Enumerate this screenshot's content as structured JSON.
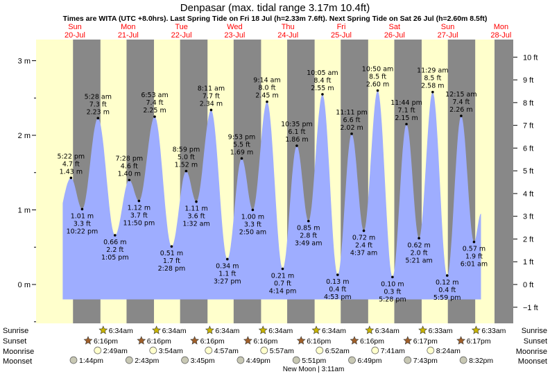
{
  "title": "Denpasar (max. tidal range 3.17m 10.4ft)",
  "subtitle": "Times are WITA (UTC +8.0hrs). Last Spring Tide on Fri 18 Jul (h=2.33m 7.6ft). Next Spring Tide on Sat 26 Jul (h=2.60m 8.5ft)",
  "days": [
    {
      "name": "Sun",
      "date": "20-Jul"
    },
    {
      "name": "Mon",
      "date": "21-Jul"
    },
    {
      "name": "Tue",
      "date": "22-Jul"
    },
    {
      "name": "Wed",
      "date": "23-Jul"
    },
    {
      "name": "Thu",
      "date": "24-Jul"
    },
    {
      "name": "Fri",
      "date": "25-Jul"
    },
    {
      "name": "Sat",
      "date": "26-Jul"
    },
    {
      "name": "Sun",
      "date": "27-Jul"
    },
    {
      "name": "Mon",
      "date": "28-Jul"
    }
  ],
  "chart_data": {
    "type": "area",
    "title": "Denpasar (max. tidal range 3.17m 10.4ft)",
    "y_unit_left": "m",
    "y_unit_right": "ft",
    "ylim_m": [
      -0.57,
      3.06
    ],
    "left_ticks": [
      {
        "v": 0,
        "label": "0 m"
      },
      {
        "v": 1,
        "label": "1 m"
      },
      {
        "v": 2,
        "label": "2 m"
      },
      {
        "v": 3,
        "label": "3 m"
      }
    ],
    "right_ticks": [
      {
        "v": -1,
        "label": "−1 ft"
      },
      {
        "v": 0,
        "label": "0 ft"
      },
      {
        "v": 1,
        "label": "1 ft"
      },
      {
        "v": 2,
        "label": "2 ft"
      },
      {
        "v": 3,
        "label": "3 ft"
      },
      {
        "v": 4,
        "label": "4 ft"
      },
      {
        "v": 5,
        "label": "5 ft"
      },
      {
        "v": 6,
        "label": "6 ft"
      },
      {
        "v": 7,
        "label": "7 ft"
      },
      {
        "v": 8,
        "label": "8 ft"
      },
      {
        "v": 9,
        "label": "9 ft"
      },
      {
        "v": 10,
        "label": "10 ft"
      }
    ],
    "night_shading": [
      {
        "start_day": 0,
        "end_day": 0,
        "sunset": "18:16",
        "sunrise": "06:34"
      },
      {
        "start_day": 1,
        "end_day": 1,
        "sunset": "18:16",
        "sunrise": "06:34"
      },
      {
        "start_day": 2,
        "end_day": 2,
        "sunset": "18:16",
        "sunrise": "06:34"
      },
      {
        "start_day": 3,
        "end_day": 3,
        "sunset": "18:16",
        "sunrise": "06:34"
      },
      {
        "start_day": 4,
        "end_day": 4,
        "sunset": "18:16",
        "sunrise": "06:34"
      },
      {
        "start_day": 5,
        "end_day": 5,
        "sunset": "18:16",
        "sunrise": "06:34"
      },
      {
        "start_day": 6,
        "end_day": 6,
        "sunset": "18:17",
        "sunrise": "06:33"
      },
      {
        "start_day": 7,
        "end_day": 7,
        "sunset": "18:17",
        "sunrise": "06:33"
      }
    ],
    "tides": [
      {
        "day": 0,
        "time": "17:22",
        "time_label": "5:22 pm",
        "m": 1.43,
        "ft": "4.7 ft",
        "m_label": "1.43 m",
        "type": "high"
      },
      {
        "day": 0,
        "time": "22:22",
        "time_label": "10:22 pm",
        "m": 1.01,
        "ft": "3.3 ft",
        "m_label": "1.01 m",
        "type": "low"
      },
      {
        "day": 1,
        "time": "05:28",
        "time_label": "5:28 am",
        "m": 2.23,
        "ft": "7.3 ft",
        "m_label": "2.23 m",
        "type": "high"
      },
      {
        "day": 1,
        "time": "13:05",
        "time_label": "1:05 pm",
        "m": 0.66,
        "ft": "2.2 ft",
        "m_label": "0.66 m",
        "type": "low"
      },
      {
        "day": 1,
        "time": "19:28",
        "time_label": "7:28 pm",
        "m": 1.4,
        "ft": "4.6 ft",
        "m_label": "1.40 m",
        "type": "high"
      },
      {
        "day": 1,
        "time": "23:50",
        "time_label": "11:50 pm",
        "m": 1.12,
        "ft": "3.7 ft",
        "m_label": "1.12 m",
        "type": "low"
      },
      {
        "day": 2,
        "time": "06:53",
        "time_label": "6:53 am",
        "m": 2.25,
        "ft": "7.4 ft",
        "m_label": "2.25 m",
        "type": "high"
      },
      {
        "day": 2,
        "time": "14:28",
        "time_label": "2:28 pm",
        "m": 0.51,
        "ft": "1.7 ft",
        "m_label": "0.51 m",
        "type": "low"
      },
      {
        "day": 2,
        "time": "20:59",
        "time_label": "8:59 pm",
        "m": 1.52,
        "ft": "5.0 ft",
        "m_label": "1.52 m",
        "type": "high"
      },
      {
        "day": 3,
        "time": "01:32",
        "time_label": "1:32 am",
        "m": 1.11,
        "ft": "3.6 ft",
        "m_label": "1.11 m",
        "type": "low"
      },
      {
        "day": 3,
        "time": "08:11",
        "time_label": "8:11 am",
        "m": 2.34,
        "ft": "7.7 ft",
        "m_label": "2.34 m",
        "type": "high"
      },
      {
        "day": 3,
        "time": "15:27",
        "time_label": "3:27 pm",
        "m": 0.34,
        "ft": "1.1 ft",
        "m_label": "0.34 m",
        "type": "low"
      },
      {
        "day": 3,
        "time": "21:53",
        "time_label": "9:53 pm",
        "m": 1.69,
        "ft": "5.5 ft",
        "m_label": "1.69 m",
        "type": "high"
      },
      {
        "day": 4,
        "time": "02:50",
        "time_label": "2:50 am",
        "m": 1.0,
        "ft": "3.3 ft",
        "m_label": "1.00 m",
        "type": "low"
      },
      {
        "day": 4,
        "time": "09:14",
        "time_label": "9:14 am",
        "m": 2.45,
        "ft": "8.0 ft",
        "m_label": "2.45 m",
        "type": "high"
      },
      {
        "day": 4,
        "time": "16:14",
        "time_label": "4:14 pm",
        "m": 0.21,
        "ft": "0.7 ft",
        "m_label": "0.21 m",
        "type": "low"
      },
      {
        "day": 4,
        "time": "22:35",
        "time_label": "10:35 pm",
        "m": 1.86,
        "ft": "6.1 ft",
        "m_label": "1.86 m",
        "type": "high"
      },
      {
        "day": 5,
        "time": "03:49",
        "time_label": "3:49 am",
        "m": 0.85,
        "ft": "2.8 ft",
        "m_label": "0.85 m",
        "type": "low"
      },
      {
        "day": 5,
        "time": "10:05",
        "time_label": "10:05 am",
        "m": 2.55,
        "ft": "8.4 ft",
        "m_label": "2.55 m",
        "type": "high"
      },
      {
        "day": 5,
        "time": "16:53",
        "time_label": "4:53 pm",
        "m": 0.13,
        "ft": "0.4 ft",
        "m_label": "0.13 m",
        "type": "low"
      },
      {
        "day": 5,
        "time": "23:11",
        "time_label": "11:11 pm",
        "m": 2.02,
        "ft": "6.6 ft",
        "m_label": "2.02 m",
        "type": "high"
      },
      {
        "day": 6,
        "time": "04:37",
        "time_label": "4:37 am",
        "m": 0.72,
        "ft": "2.4 ft",
        "m_label": "0.72 m",
        "type": "low"
      },
      {
        "day": 6,
        "time": "10:50",
        "time_label": "10:50 am",
        "m": 2.6,
        "ft": "8.5 ft",
        "m_label": "2.60 m",
        "type": "high"
      },
      {
        "day": 6,
        "time": "17:28",
        "time_label": "5:28 pm",
        "m": 0.1,
        "ft": "0.3 ft",
        "m_label": "0.10 m",
        "type": "low"
      },
      {
        "day": 6,
        "time": "23:44",
        "time_label": "11:44 pm",
        "m": 2.15,
        "ft": "7.1 ft",
        "m_label": "2.15 m",
        "type": "high"
      },
      {
        "day": 7,
        "time": "05:21",
        "time_label": "5:21 am",
        "m": 0.62,
        "ft": "2.0 ft",
        "m_label": "0.62 m",
        "type": "low"
      },
      {
        "day": 7,
        "time": "11:29",
        "time_label": "11:29 am",
        "m": 2.58,
        "ft": "8.5 ft",
        "m_label": "2.58 m",
        "type": "high"
      },
      {
        "day": 7,
        "time": "17:59",
        "time_label": "5:59 pm",
        "m": 0.12,
        "ft": "0.4 ft",
        "m_label": "0.12 m",
        "type": "low"
      },
      {
        "day": 8,
        "time": "00:15",
        "time_label": "12:15 am",
        "m": 2.26,
        "ft": "7.4 ft",
        "m_label": "2.26 m",
        "type": "high"
      },
      {
        "day": 8,
        "time": "06:01",
        "time_label": "6:01 am",
        "m": 0.57,
        "ft": "1.9 ft",
        "m_label": "0.57 m",
        "type": "low"
      }
    ]
  },
  "legend_rows": {
    "sunrise": "Sunrise",
    "sunset": "Sunset",
    "moonrise": "Moonrise",
    "moonset": "Moonset"
  },
  "events": {
    "sunrise": [
      {
        "day": 1,
        "time": "6:34am"
      },
      {
        "day": 2,
        "time": "6:34am"
      },
      {
        "day": 3,
        "time": "6:34am"
      },
      {
        "day": 4,
        "time": "6:34am"
      },
      {
        "day": 5,
        "time": "6:34am"
      },
      {
        "day": 6,
        "time": "6:34am"
      },
      {
        "day": 7,
        "time": "6:33am"
      },
      {
        "day": 8,
        "time": "6:33am"
      }
    ],
    "sunset": [
      {
        "day": 0,
        "time": "6:16pm"
      },
      {
        "day": 1,
        "time": "6:16pm"
      },
      {
        "day": 2,
        "time": "6:16pm"
      },
      {
        "day": 3,
        "time": "6:16pm"
      },
      {
        "day": 4,
        "time": "6:16pm"
      },
      {
        "day": 5,
        "time": "6:16pm"
      },
      {
        "day": 6,
        "time": "6:17pm"
      },
      {
        "day": 7,
        "time": "6:17pm"
      }
    ],
    "moonrise": [
      {
        "day": 1,
        "time": "2:49am"
      },
      {
        "day": 2,
        "time": "3:54am"
      },
      {
        "day": 3,
        "time": "4:57am"
      },
      {
        "day": 4,
        "time": "5:57am"
      },
      {
        "day": 5,
        "time": "6:52am"
      },
      {
        "day": 6,
        "time": "7:41am"
      },
      {
        "day": 7,
        "time": "8:24am"
      }
    ],
    "moonset": [
      {
        "day": 0,
        "time": "1:44pm"
      },
      {
        "day": 1,
        "time": "2:43pm"
      },
      {
        "day": 2,
        "time": "3:45pm"
      },
      {
        "day": 3,
        "time": "4:49pm"
      },
      {
        "day": 4,
        "time": "5:51pm"
      },
      {
        "day": 5,
        "time": "6:49pm"
      },
      {
        "day": 6,
        "time": "7:43pm"
      },
      {
        "day": 7,
        "time": "8:32pm"
      }
    ]
  },
  "moon_phase_note": "New Moon | 3:11am",
  "colors": {
    "day_bg": "#ffffcc",
    "night_bg": "#888888",
    "frame_bg": "#888888",
    "water": "#9eadff",
    "day_label": "#ff0000",
    "sun_star": "#c8b400",
    "sunset_star": "#a0602a",
    "moonrise_disc": "#ffffcc",
    "moonset_disc": "#c8c8b4"
  }
}
